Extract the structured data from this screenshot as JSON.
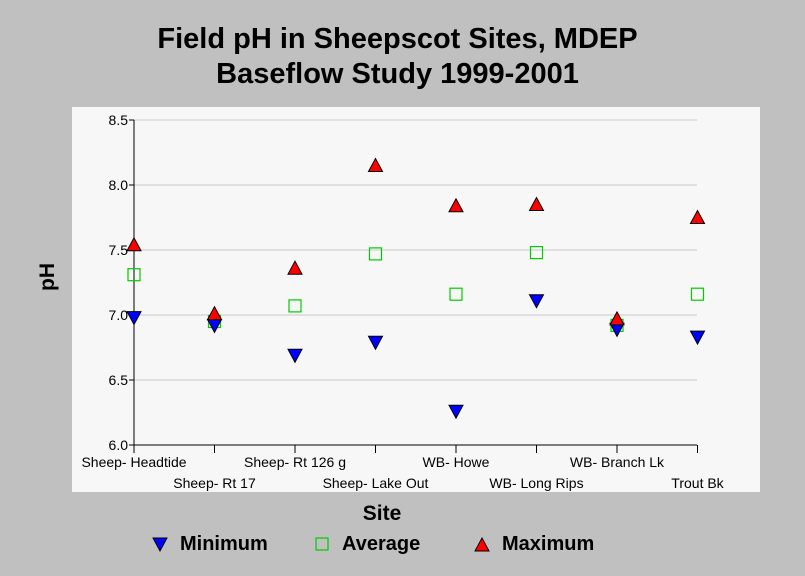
{
  "title_lines": [
    "Field pH in Sheepscot Sites, MDEP",
    "Baseflow Study 1999-2001"
  ],
  "chart_data": {
    "type": "scatter",
    "xlabel": "Site",
    "ylabel": "pH",
    "ylim": [
      6.0,
      8.5
    ],
    "y_ticks": [
      "6.0",
      "6.5",
      "7.0",
      "7.5",
      "8.0",
      "8.5"
    ],
    "grid": true,
    "legend_placement": "bottom",
    "categories": [
      "Sheep- Headtide",
      "Sheep- Rt 17",
      "Sheep- Rt 126 g",
      "Sheep- Lake Out",
      "WB- Howe",
      "WB- Long Rips",
      "WB- Branch Lk",
      "Trout Bk"
    ],
    "series": [
      {
        "name": "Minimum",
        "marker": "triangle-down",
        "color": "#0000ff",
        "values": [
          6.98,
          6.92,
          6.69,
          6.79,
          6.26,
          7.11,
          6.89,
          6.83
        ]
      },
      {
        "name": "Average",
        "marker": "square-open",
        "color": "#00cc00",
        "values": [
          7.31,
          6.95,
          7.07,
          7.47,
          7.16,
          7.48,
          6.92,
          7.16
        ]
      },
      {
        "name": "Maximum",
        "marker": "triangle-up",
        "color": "#ff0000",
        "values": [
          7.54,
          7.01,
          7.36,
          8.15,
          7.84,
          7.85,
          6.97,
          7.75
        ]
      }
    ]
  }
}
